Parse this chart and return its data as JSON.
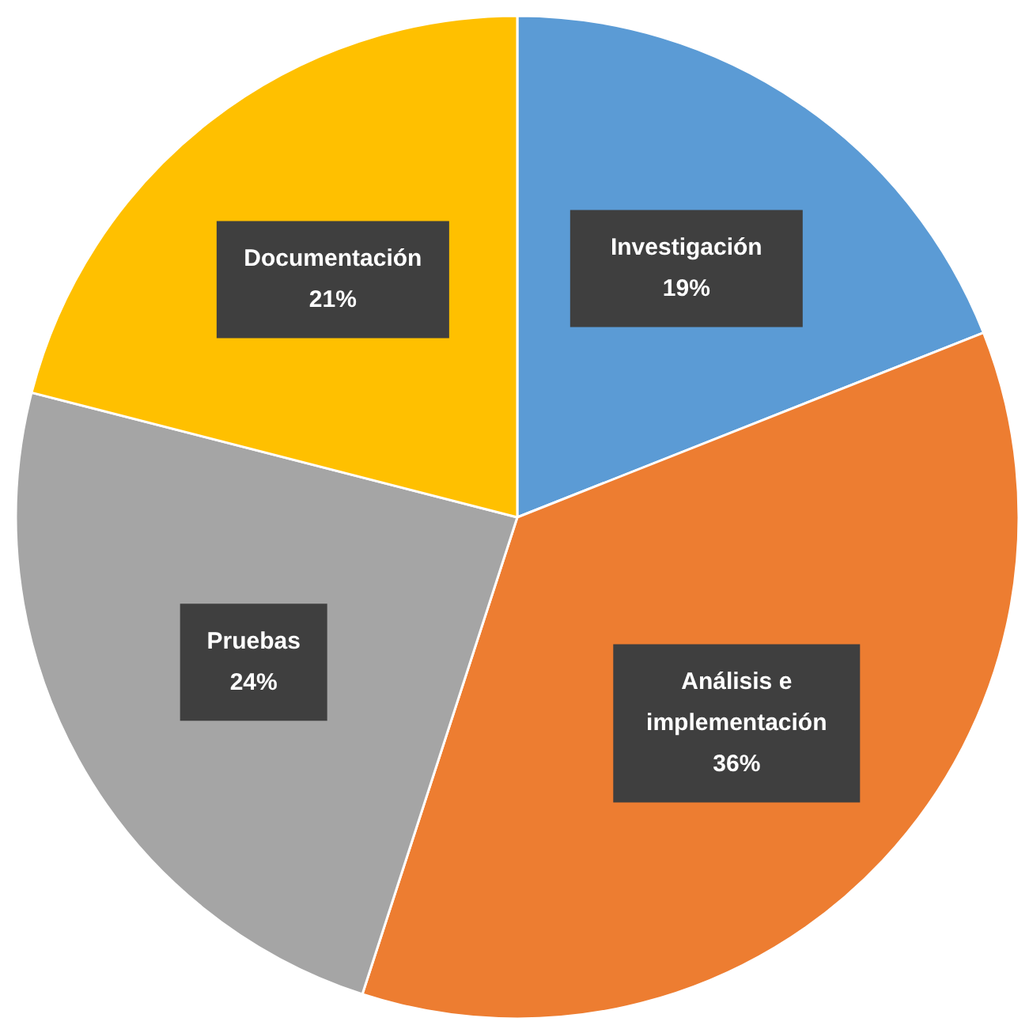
{
  "chart_data": {
    "type": "pie",
    "categories": [
      "Investigación",
      "Análisis e implementación",
      "Pruebas",
      "Documentación"
    ],
    "values": [
      19,
      36,
      24,
      21
    ],
    "value_labels": [
      "19%",
      "36%",
      "24%",
      "21%"
    ],
    "colors": [
      "#5b9bd5",
      "#ed7d31",
      "#a5a5a5",
      "#ffc000"
    ],
    "legend": false
  }
}
